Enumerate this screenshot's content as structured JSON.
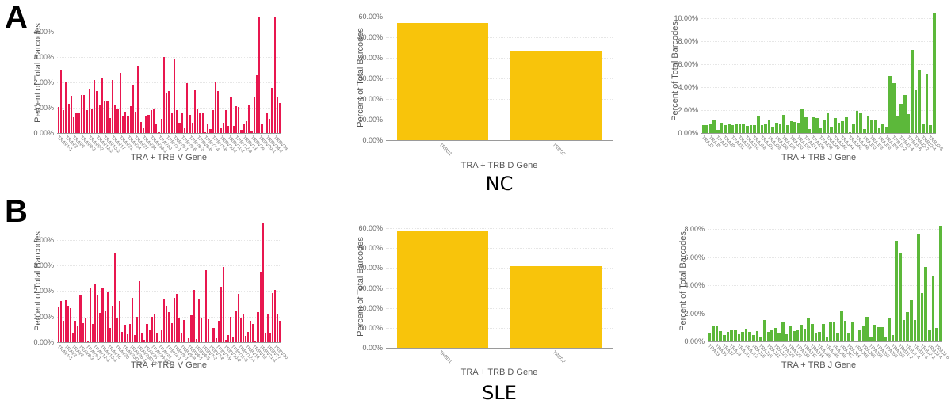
{
  "panels": [
    {
      "letter": "A",
      "group": "NC"
    },
    {
      "letter": "B",
      "group": "SLE"
    }
  ],
  "colors": {
    "v_gene": "#e8174f",
    "d_gene": "#f8c40b",
    "j_gene": "#5cb83a"
  },
  "chart_data": [
    {
      "id": "A-V",
      "panel": "A",
      "group": "NC",
      "type": "bar",
      "title": "",
      "xlabel": "TRA + TRB V Gene",
      "ylabel": "Percent of Total Barcodes",
      "ylim": [
        0,
        4.7
      ],
      "yticks": [
        "0.00%",
        "1.00%",
        "2.00%",
        "3.00%",
        "4.00%"
      ],
      "ytick_values": [
        0,
        1,
        2,
        3,
        4
      ],
      "color": "#e8174f",
      "grid": true,
      "tick_labels": [
        "TRAV1-1",
        "TRAV3",
        "TRAV6",
        "TRAV8-3",
        "TRAV9-2",
        "TRAV12-2",
        "TRAV13-2",
        "TRAV17",
        "TRAV21",
        "TRAV24",
        "TRAV27",
        "TRAV34",
        "TRAV38-1",
        "TRAV40",
        "TRBV3-1",
        "TRBV5-1",
        "TRBV5-6",
        "TRBV6-3",
        "TRBV6-6",
        "TRBV7-4",
        "TRBV7-8",
        "TRBV10-1",
        "TRBV11-1",
        "TRBV12-3",
        "TRBV13",
        "TRBV16",
        "TRBV20-1",
        "TRBV24-1",
        "TRBV28"
      ],
      "values": [
        1.05,
        2.5,
        0.9,
        2.0,
        1.15,
        1.48,
        0.62,
        0.78,
        0.78,
        1.5,
        1.5,
        0.9,
        1.75,
        0.95,
        2.1,
        1.65,
        1.1,
        2.15,
        1.28,
        1.3,
        0.6,
        2.1,
        1.12,
        0.95,
        2.38,
        0.66,
        0.84,
        0.7,
        1.08,
        1.92,
        0.8,
        2.65,
        0.44,
        0.2,
        0.66,
        0.72,
        0.9,
        0.95,
        0.38,
        0.03,
        0.56,
        3.0,
        1.58,
        1.65,
        0.78,
        2.92,
        0.9,
        0.4,
        0.78,
        0.2,
        1.98,
        0.72,
        0.4,
        1.72,
        0.95,
        0.78,
        0.78,
        0.03,
        0.38,
        0.16,
        0.9,
        2.03,
        1.65,
        0.18,
        0.4,
        0.92,
        0.28,
        1.45,
        0.28,
        1.08,
        1.05,
        0.12,
        0.38,
        0.46,
        1.12,
        0.08,
        1.4,
        2.3,
        4.6,
        0.38,
        0.0,
        0.78,
        0.56,
        1.78,
        4.62,
        1.45,
        1.2
      ]
    },
    {
      "id": "A-D",
      "panel": "A",
      "group": "NC",
      "type": "bar",
      "title": "",
      "xlabel": "TRA + TRB D Gene",
      "ylabel": "Percent of Total Barcodes",
      "ylim": [
        0,
        60
      ],
      "yticks": [
        "0.00%",
        "10.00%",
        "20.00%",
        "30.00%",
        "40.00%",
        "50.00%",
        "60.00%"
      ],
      "ytick_values": [
        0,
        10,
        20,
        30,
        40,
        50,
        60
      ],
      "color": "#f8c40b",
      "grid": true,
      "categories": [
        "TRBD1",
        "TRBD2"
      ],
      "tick_labels": [
        "TRBD1",
        "TRBD2"
      ],
      "values": [
        57.0,
        43.0
      ]
    },
    {
      "id": "A-J",
      "panel": "A",
      "group": "NC",
      "type": "bar",
      "title": "",
      "xlabel": "TRA + TRB J Gene",
      "ylabel": "Percent of Total Barcodes",
      "ylim": [
        0,
        10.6
      ],
      "yticks": [
        "0.00%",
        "2.00%",
        "4.00%",
        "6.00%",
        "8.00%",
        "10.00%"
      ],
      "ytick_values": [
        0,
        2,
        4,
        6,
        8,
        10
      ],
      "color": "#5cb83a",
      "grid": true,
      "tick_labels": [
        "TRAJ3",
        "TRAJ5",
        "TRAJ7",
        "TRAJ9",
        "TRAJ11",
        "TRAJ13",
        "TRAJ16",
        "TRAJ18",
        "TRAJ21",
        "TRAJ23",
        "TRAJ26",
        "TRAJ28",
        "TRAJ30",
        "TRAJ32",
        "TRAJ34",
        "TRAJ36",
        "TRAJ38",
        "TRAJ40",
        "TRAJ42",
        "TRAJ44",
        "TRAJ46",
        "TRAJ48",
        "TRAJ50",
        "TRAJ53",
        "TRAJ56",
        "TRAJ58",
        "TRBJ1-2",
        "TRBJ1-4",
        "TRBJ1-6",
        "TRBJ2-2",
        "TRBJ2-4",
        "TRBJ2-6"
      ],
      "values": [
        0.72,
        0.72,
        0.82,
        1.08,
        0.28,
        0.92,
        0.68,
        0.84,
        0.72,
        0.76,
        0.78,
        0.8,
        0.65,
        0.72,
        0.66,
        1.52,
        0.7,
        0.8,
        1.1,
        0.56,
        0.92,
        0.76,
        1.6,
        0.72,
        1.02,
        0.98,
        0.92,
        2.12,
        1.35,
        0.32,
        1.4,
        1.28,
        0.38,
        1.12,
        1.72,
        0.58,
        1.28,
        0.88,
        1.0,
        1.35,
        0.05,
        0.8,
        1.92,
        1.72,
        0.35,
        1.45,
        1.18,
        1.2,
        0.38,
        0.82,
        0.55,
        4.95,
        4.35,
        1.42,
        2.55,
        3.32,
        1.68,
        7.22,
        3.72,
        5.52,
        0.82,
        5.15,
        0.66,
        10.42
      ]
    },
    {
      "id": "B-V",
      "panel": "B",
      "group": "SLE",
      "type": "bar",
      "title": "",
      "xlabel": "TRA + TRB V Gene",
      "ylabel": "Percent of Total Barcodes",
      "ylim": [
        0,
        4.7
      ],
      "yticks": [
        "0.00%",
        "1.00%",
        "2.00%",
        "3.00%",
        "4.00%"
      ],
      "ytick_values": [
        0,
        1,
        2,
        3,
        4
      ],
      "color": "#e8174f",
      "grid": true,
      "tick_labels": [
        "TRAV1-1",
        "TRAV3",
        "TRAV6",
        "TRAV8-3",
        "TRAV9-1",
        "TRAV12-1",
        "TRAV13-1",
        "TRAV16",
        "TRAV20",
        "TRAV23DV6",
        "TRAV26-1",
        "TRAV29DV5",
        "TRAV35",
        "TRAV38-2DV8",
        "TRAV41",
        "TRBV4-1",
        "TRBV5-1",
        "TRBV5-8",
        "TRBV6-1",
        "TRBV6-5",
        "TRBV7-3",
        "TRBV7-8",
        "TRBV7-9",
        "TRBV10-2",
        "TRBV11-3",
        "TRBV12-4",
        "TRBV14",
        "TRBV18",
        "TRBV21-1",
        "TRBV27",
        "TRBV30"
      ],
      "values": [
        1.35,
        1.62,
        0.82,
        1.63,
        1.42,
        1.32,
        0.38,
        0.85,
        0.65,
        1.82,
        0.74,
        0.95,
        0.02,
        2.12,
        0.7,
        2.28,
        1.85,
        1.15,
        2.1,
        1.2,
        1.97,
        0.55,
        1.42,
        3.5,
        0.94,
        1.6,
        0.4,
        0.68,
        0.3,
        0.72,
        1.73,
        0.28,
        0.98,
        2.38,
        0.35,
        0.1,
        0.72,
        0.45,
        0.98,
        1.1,
        0.38,
        0.02,
        0.5,
        1.66,
        1.42,
        1.18,
        0.73,
        1.74,
        1.9,
        0.93,
        0.37,
        0.88,
        0.0,
        0.14,
        1.04,
        2.04,
        0.13,
        1.7,
        0.93,
        0.0,
        2.8,
        0.91,
        0.0,
        0.55,
        0.14,
        0.83,
        2.18,
        2.95,
        0.1,
        0.28,
        0.98,
        0.22,
        1.21,
        1.88,
        0.95,
        1.1,
        0.25,
        0.4,
        0.82,
        0.72,
        0.03,
        1.17,
        2.75,
        4.63,
        0.35,
        1.1,
        0.37,
        1.92,
        2.05,
        1.08,
        0.82
      ]
    },
    {
      "id": "B-D",
      "panel": "B",
      "group": "SLE",
      "type": "bar",
      "title": "",
      "xlabel": "TRA + TRB D Gene",
      "ylabel": "Percent of Total Barcodes",
      "ylim": [
        0,
        60
      ],
      "yticks": [
        "0.00%",
        "10.00%",
        "20.00%",
        "30.00%",
        "40.00%",
        "50.00%",
        "60.00%"
      ],
      "ytick_values": [
        0,
        10,
        20,
        30,
        40,
        50,
        60
      ],
      "color": "#f8c40b",
      "grid": true,
      "categories": [
        "TRBD1",
        "TRBD2"
      ],
      "tick_labels": [
        "TRBD1",
        "TRBD2"
      ],
      "values": [
        59.0,
        41.0
      ]
    },
    {
      "id": "B-J",
      "panel": "B",
      "group": "SLE",
      "type": "bar",
      "title": "",
      "xlabel": "TRA + TRB J Gene",
      "ylabel": "Percent of Total Barcodes",
      "ylim": [
        0,
        8.4
      ],
      "yticks": [
        "0.00%",
        "2.00%",
        "4.00%",
        "6.00%",
        "8.00%"
      ],
      "ytick_values": [
        0,
        2,
        4,
        6,
        8
      ],
      "color": "#5cb83a",
      "grid": true,
      "tick_labels": [
        "TRAJ3",
        "TRAJ5",
        "TRAJ7",
        "TRAJ9",
        "TRAJ11",
        "TRAJ13",
        "TRAJ16",
        "TRAJ18",
        "TRAJ21",
        "TRAJ23",
        "TRAJ26",
        "TRAJ28",
        "TRAJ30",
        "TRAJ32",
        "TRAJ34",
        "TRAJ36",
        "TRAJ38",
        "TRAJ40",
        "TRAJ42",
        "TRAJ44",
        "TRAJ46",
        "TRAJ48",
        "TRAJ50",
        "TRAJ53",
        "TRAJ56",
        "TRAJ58",
        "TRBJ1-2",
        "TRBJ1-4",
        "TRBJ1-6",
        "TRBJ2-2",
        "TRBJ2-4",
        "TRBJ2-6"
      ],
      "values": [
        0.6,
        1.06,
        1.12,
        0.74,
        0.44,
        0.65,
        0.78,
        0.86,
        0.5,
        0.66,
        0.93,
        0.7,
        0.43,
        0.72,
        0.36,
        1.52,
        0.66,
        0.78,
        0.98,
        0.6,
        1.37,
        0.5,
        1.07,
        0.73,
        0.84,
        1.18,
        0.88,
        1.63,
        1.22,
        0.57,
        0.7,
        1.25,
        0.33,
        1.38,
        1.35,
        0.62,
        2.15,
        1.47,
        0.6,
        1.4,
        0.05,
        0.8,
        1.05,
        1.77,
        0.3,
        1.21,
        1.0,
        1.0,
        0.35,
        1.66,
        0.44,
        7.18,
        6.25,
        1.55,
        2.08,
        2.93,
        1.5,
        7.68,
        3.42,
        5.28,
        0.84,
        4.68,
        0.96,
        8.22
      ]
    }
  ]
}
